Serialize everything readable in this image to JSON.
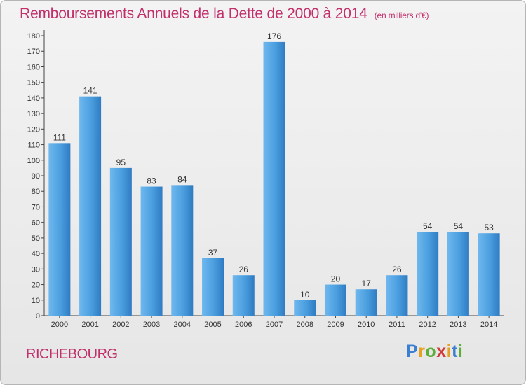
{
  "header": {
    "title": "Remboursements Annuels de la Dette de 2000 à 2014",
    "unit": "(en milliers d'€)"
  },
  "footer": {
    "city": "RICHEBOURG",
    "logo": "Proxiti"
  },
  "colors": {
    "bar": "#4a9ede",
    "bar_dark": "#2f7bc3",
    "title": "#c2306c"
  },
  "chart_data": {
    "type": "bar",
    "title": "Remboursements Annuels de la Dette de 2000 à 2014",
    "subtitle": "(en milliers d'€)",
    "xlabel": "",
    "ylabel": "",
    "categories": [
      "2000",
      "2001",
      "2002",
      "2003",
      "2004",
      "2005",
      "2006",
      "2007",
      "2008",
      "2009",
      "2010",
      "2011",
      "2012",
      "2013",
      "2014"
    ],
    "values": [
      111,
      141,
      95,
      83,
      84,
      37,
      26,
      176,
      10,
      20,
      17,
      26,
      54,
      54,
      53
    ],
    "ylim": [
      0,
      180
    ],
    "yticks": [
      0,
      10,
      20,
      30,
      40,
      50,
      60,
      70,
      80,
      90,
      100,
      110,
      120,
      130,
      140,
      150,
      160,
      170,
      180
    ],
    "grid": false,
    "data_labels": true
  }
}
